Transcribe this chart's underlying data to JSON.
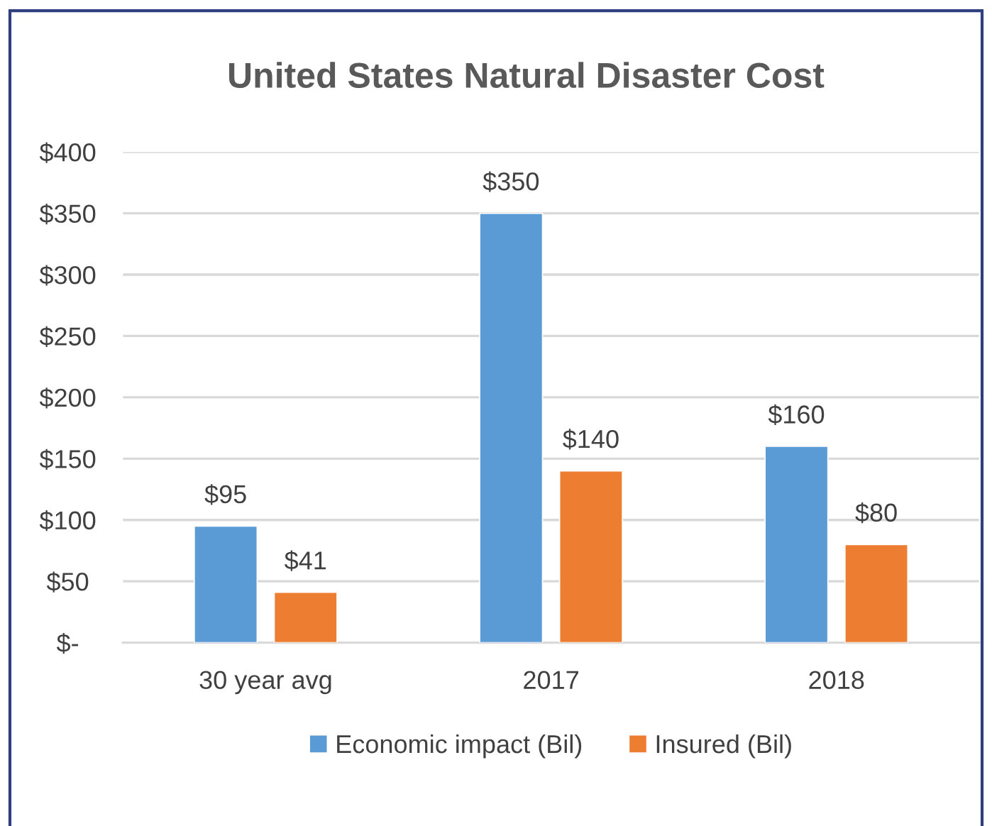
{
  "chart_data": {
    "type": "bar",
    "title": "United States Natural Disaster Cost",
    "categories": [
      "30 year avg",
      "2017",
      "2018"
    ],
    "series": [
      {
        "name": "Economic impact (Bil)",
        "color": "#5b9bd5",
        "values": [
          95,
          350,
          160
        ],
        "value_labels": [
          "$95",
          "$350",
          "$160"
        ]
      },
      {
        "name": "Insured (Bil)",
        "color": "#ed7d31",
        "values": [
          41,
          140,
          80
        ],
        "value_labels": [
          "$41",
          "$140",
          "$80"
        ]
      }
    ],
    "ylim": [
      0,
      400
    ],
    "yticks": [
      {
        "value": 0,
        "label": "$-"
      },
      {
        "value": 50,
        "label": "$50"
      },
      {
        "value": 100,
        "label": "$100"
      },
      {
        "value": 150,
        "label": "$150"
      },
      {
        "value": 200,
        "label": "$200"
      },
      {
        "value": 250,
        "label": "$250"
      },
      {
        "value": 300,
        "label": "$300"
      },
      {
        "value": 350,
        "label": "$350"
      },
      {
        "value": 400,
        "label": "$400"
      }
    ],
    "grid": "y",
    "legend": "bottom"
  }
}
